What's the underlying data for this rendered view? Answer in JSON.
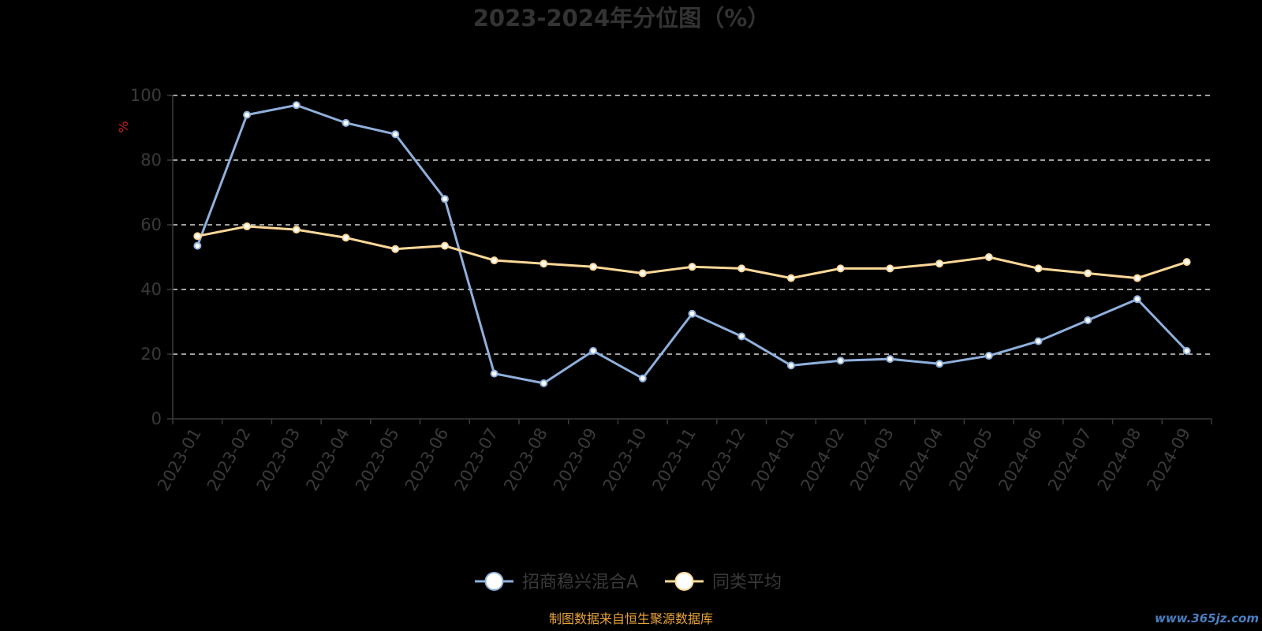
{
  "chart_data": {
    "type": "line",
    "title": "2023-2024年分位图（%）",
    "ylabel": "%",
    "xlabel": "",
    "ylim": [
      0,
      100
    ],
    "yticks": [
      0,
      20,
      40,
      60,
      80,
      100
    ],
    "grid": true,
    "legend_position": "bottom",
    "categories": [
      "2023-01",
      "2023-02",
      "2023-03",
      "2023-04",
      "2023-05",
      "2023-06",
      "2023-07",
      "2023-08",
      "2023-09",
      "2023-10",
      "2023-11",
      "2023-12",
      "2024-01",
      "2024-02",
      "2024-03",
      "2024-04",
      "2024-05",
      "2024-06",
      "2024-07",
      "2024-08",
      "2024-09"
    ],
    "series": [
      {
        "name": "招商稳兴混合A",
        "color": "#8fb0dc",
        "values": [
          53.5,
          94,
          97,
          91.5,
          88,
          68,
          14,
          11,
          21,
          12.5,
          32.5,
          25.5,
          16.5,
          18,
          18.5,
          17,
          19.5,
          24,
          30.5,
          37,
          21
        ]
      },
      {
        "name": "同类平均",
        "color": "#fcd898",
        "values": [
          56.5,
          59.5,
          58.5,
          56,
          52.5,
          53.5,
          49,
          48,
          47,
          45,
          47,
          46.5,
          43.5,
          46.5,
          46.5,
          48,
          50,
          46.5,
          45,
          43.5,
          48.5
        ]
      }
    ],
    "source": "制图数据来自恒生聚源数据库",
    "watermark": "www.365jz.com"
  }
}
